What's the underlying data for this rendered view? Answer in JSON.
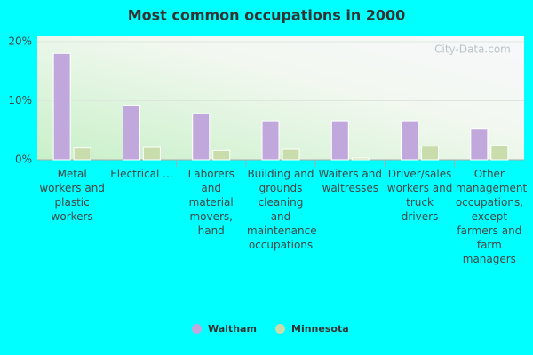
{
  "chart_data": {
    "type": "bar",
    "title": "Most common occupations in 2000",
    "watermark": "City-Data.com",
    "categories": [
      "Metal workers and plastic workers",
      "Electrical ...",
      "Laborers and material movers, hand",
      "Building and grounds cleaning and maintenance occupations",
      "Waiters and waitresses",
      "Driver/sales workers and truck drivers",
      "Other management occupations, except farmers and farm managers"
    ],
    "series": [
      {
        "name": "Waltham",
        "color": "#c0a8dc",
        "values": [
          18.0,
          9.2,
          7.8,
          6.6,
          6.6,
          6.6,
          5.3
        ]
      },
      {
        "name": "Minnesota",
        "color": "#c8dcac",
        "values": [
          2.0,
          2.1,
          1.6,
          1.8,
          0.3,
          2.3,
          2.4
        ]
      }
    ],
    "ylim": [
      0,
      20
    ],
    "yticks": [
      {
        "value": 0,
        "label": "0%"
      },
      {
        "value": 10,
        "label": "10%"
      },
      {
        "value": 20,
        "label": "20%"
      }
    ],
    "grid": true
  }
}
